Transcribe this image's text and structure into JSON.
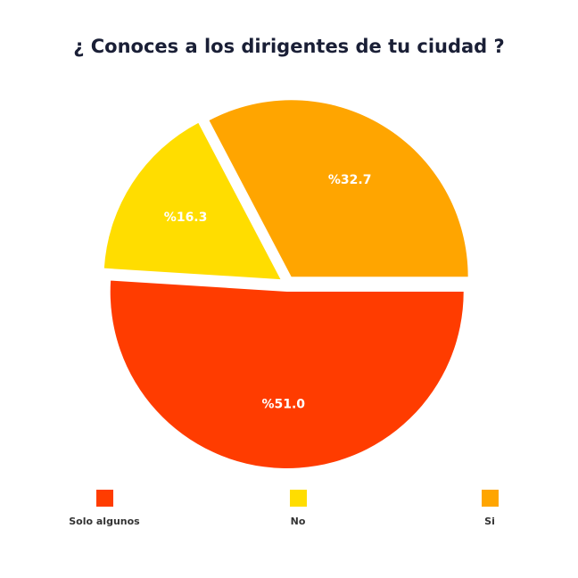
{
  "chart_data": {
    "type": "pie",
    "title": "¿ Conoces a los dirigentes de tu ciudad ?",
    "slices": [
      {
        "label": "Si",
        "value": 32.7,
        "display": "%32.7",
        "color": "#FFA500"
      },
      {
        "label": "No",
        "value": 16.3,
        "display": "%16.3",
        "color": "#FFDD00"
      },
      {
        "label": "Solo algunos",
        "value": 51.0,
        "display": "%51.0",
        "color": "#FF3C00"
      }
    ],
    "legend": [
      {
        "label": "Solo algunos",
        "color": "#FF3C00"
      },
      {
        "label": "No",
        "color": "#FFDD00"
      },
      {
        "label": "Si",
        "color": "#FFA500"
      }
    ],
    "legend_position": "bottom"
  }
}
